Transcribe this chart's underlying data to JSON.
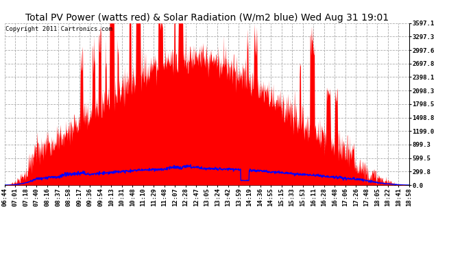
{
  "title": "Total PV Power (watts red) & Solar Radiation (W/m2 blue) Wed Aug 31 19:01",
  "copyright_text": "Copyright 2011 Cartronics.com",
  "y_max": 3597.1,
  "y_min": 0.0,
  "y_ticks": [
    0.0,
    299.8,
    599.5,
    899.3,
    1199.0,
    1498.8,
    1798.5,
    2098.3,
    2398.1,
    2697.8,
    2997.6,
    3297.3,
    3597.1
  ],
  "x_tick_labels": [
    "06:44",
    "07:01",
    "07:18",
    "07:40",
    "08:16",
    "08:37",
    "08:58",
    "09:17",
    "09:36",
    "09:54",
    "10:13",
    "10:31",
    "10:48",
    "11:10",
    "11:29",
    "11:48",
    "12:07",
    "12:28",
    "12:47",
    "13:05",
    "13:24",
    "13:42",
    "13:59",
    "14:19",
    "14:36",
    "14:55",
    "15:15",
    "15:33",
    "15:53",
    "16:11",
    "16:28",
    "16:48",
    "17:06",
    "17:26",
    "17:48",
    "18:05",
    "18:22",
    "18:41",
    "18:58"
  ],
  "background_color": "#ffffff",
  "pv_color": "#ff0000",
  "solar_color": "#0000ff",
  "grid_color": "#aaaaaa",
  "title_fontsize": 10,
  "axis_fontsize": 6.5,
  "copyright_fontsize": 6.5
}
